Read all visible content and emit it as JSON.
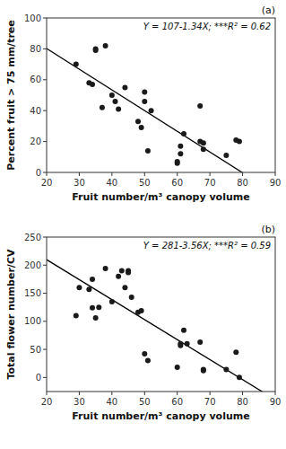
{
  "chart_data": [
    {
      "type": "scatter",
      "title": "(a)",
      "xlabel": "Fruit number/m³ canopy volume",
      "ylabel": "Percent fruit > 75 mm/tree",
      "annotation": "Y = 107-1.34X; ***R² = 0.62",
      "x": [
        29,
        33,
        34,
        35,
        35,
        37,
        38,
        40,
        41,
        42,
        44,
        48,
        49,
        50,
        50,
        51,
        52,
        60,
        60,
        61,
        61,
        62,
        67,
        67,
        68,
        68,
        75,
        78,
        79
      ],
      "values": [
        70,
        58,
        57,
        79,
        80,
        42,
        82,
        50,
        46,
        41,
        55,
        33,
        29,
        52,
        46,
        14,
        40,
        6,
        7,
        17,
        12,
        25,
        43,
        20,
        19,
        15,
        11,
        21,
        20
      ],
      "color": "#1a1a1a",
      "fit": {
        "intercept": 107,
        "slope": -1.34,
        "color": "#000000"
      },
      "xlim": [
        20,
        90
      ],
      "ylim": [
        0,
        100
      ],
      "xticks": [
        20,
        30,
        40,
        50,
        60,
        70,
        80,
        90
      ],
      "yticks": [
        0,
        20,
        40,
        60,
        80,
        100
      ]
    },
    {
      "type": "scatter",
      "title": "(b)",
      "xlabel": "Fruit number/m³ canopy volume",
      "ylabel": "Total flower number/CV",
      "annotation": "Y = 281-3.56X; ***R² = 0.59",
      "x": [
        29,
        30,
        33,
        34,
        34,
        35,
        36,
        38,
        40,
        42,
        43,
        44,
        45,
        45,
        46,
        48,
        49,
        50,
        51,
        60,
        61,
        61,
        62,
        63,
        67,
        68,
        68,
        75,
        78,
        79
      ],
      "values": [
        110,
        160,
        157,
        175,
        124,
        106,
        125,
        194,
        135,
        180,
        190,
        160,
        190,
        187,
        143,
        116,
        119,
        42,
        30,
        18,
        60,
        57,
        84,
        60,
        63,
        14,
        12,
        14,
        45,
        0
      ],
      "color": "#1a1a1a",
      "fit": {
        "intercept": 281,
        "slope": -3.56,
        "color": "#000000"
      },
      "xlim": [
        20,
        90
      ],
      "ylim": [
        -25,
        250
      ],
      "xticks": [
        20,
        30,
        40,
        50,
        60,
        70,
        80,
        90
      ],
      "yticks": [
        0,
        50,
        100,
        150,
        200,
        250
      ]
    }
  ]
}
